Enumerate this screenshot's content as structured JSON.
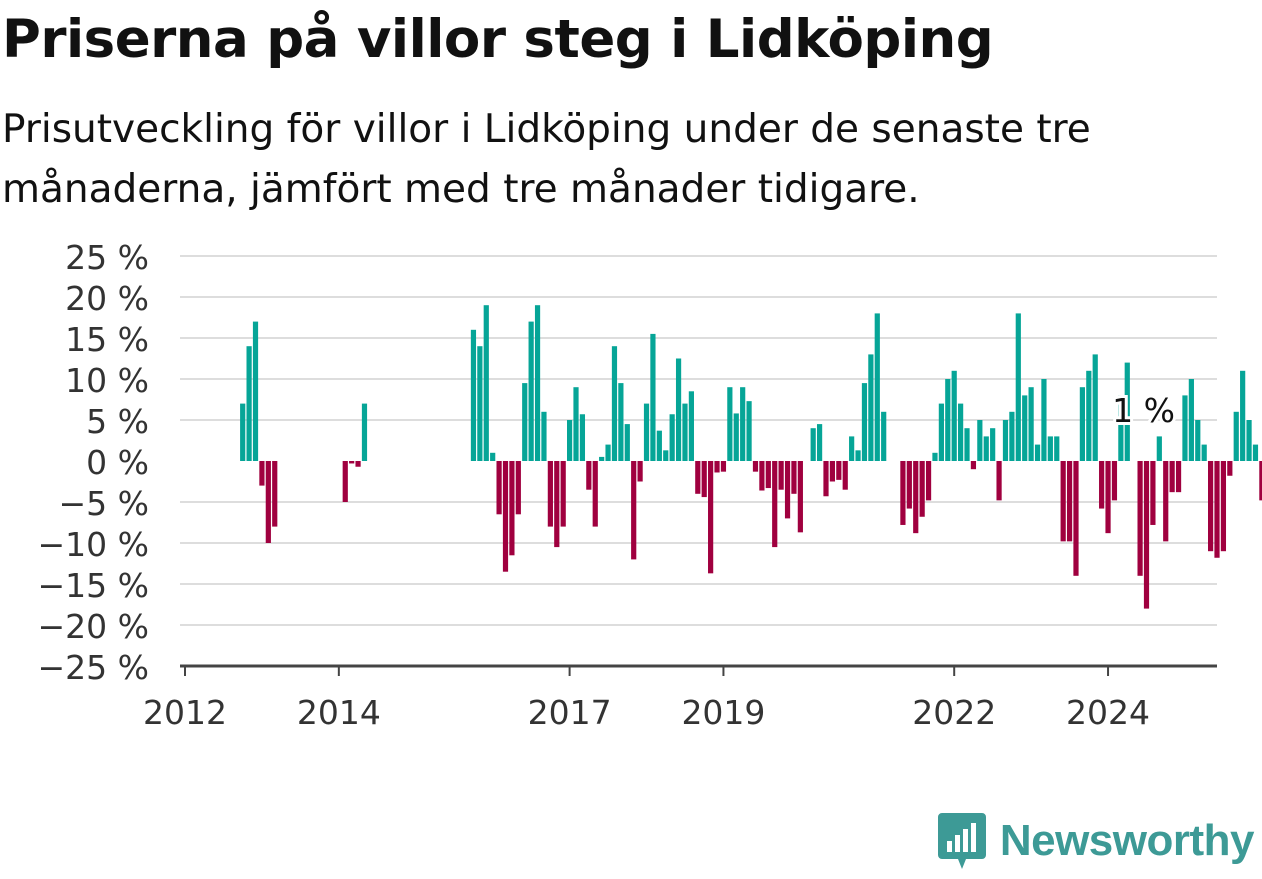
{
  "header": {
    "title": "Priserna på villor steg i Lidköping",
    "subtitle": "Prisutveckling för villor i Lidköping under de senaste tre månaderna, jämfört med tre månader tidigare."
  },
  "brand": {
    "name": "Newsworthy",
    "logo_icon": "bar-chart-badge-icon"
  },
  "colors": {
    "positive": "#06a597",
    "negative": "#a0003f",
    "grid": "#dddddd",
    "axis": "#444444",
    "brand": "#3d9a96"
  },
  "chart_data": {
    "type": "bar",
    "title": "Priserna på villor steg i Lidköping",
    "subtitle": "Prisutveckling för villor i Lidköping under de senaste tre månaderna, jämfört med tre månader tidigare.",
    "xlabel": "",
    "ylabel": "",
    "ylim": [
      -25,
      25
    ],
    "grid": true,
    "legend": "none",
    "start_month": "2012-01",
    "yticks": [
      25,
      20,
      15,
      10,
      5,
      0,
      -5,
      -10,
      -15,
      -20,
      -25
    ],
    "ytick_labels": [
      "25 %",
      "20 %",
      "15 %",
      "10 %",
      "5 %",
      "0 %",
      "−5 %",
      "−10 %",
      "−15 %",
      "−20 %",
      "−25 %"
    ],
    "xticks": [
      {
        "label": "2012",
        "month": "2012-01"
      },
      {
        "label": "2014",
        "month": "2014-01"
      },
      {
        "label": "2017",
        "month": "2017-01"
      },
      {
        "label": "2019",
        "month": "2019-01"
      },
      {
        "label": "2022",
        "month": "2022-01"
      },
      {
        "label": "2024",
        "month": "2024-01"
      }
    ],
    "annotation": {
      "text": "1 %",
      "month": "2024-07",
      "value": 1
    },
    "values": [
      null,
      null,
      null,
      null,
      null,
      null,
      null,
      null,
      null,
      7,
      14,
      17,
      -3,
      -10,
      -8,
      null,
      null,
      null,
      null,
      null,
      null,
      null,
      null,
      null,
      null,
      -5,
      -0.3,
      -0.7,
      7,
      null,
      null,
      null,
      null,
      null,
      null,
      null,
      null,
      null,
      null,
      null,
      null,
      null,
      null,
      null,
      null,
      null,
      null,
      null,
      null,
      null,
      null,
      null,
      null,
      null,
      null,
      null,
      null,
      null,
      null,
      null,
      null,
      null,
      null,
      null,
      null,
      null,
      null,
      null,
      null,
      null,
      null,
      null,
      null,
      null,
      null,
      null,
      null,
      null,
      null,
      null,
      null,
      null,
      null,
      null,
      null,
      null,
      null,
      null,
      null,
      null,
      null,
      null,
      null,
      null,
      null,
      null,
      null,
      null,
      null,
      null,
      null,
      null,
      null,
      null,
      null,
      null,
      null,
      null,
      null,
      null,
      null,
      null,
      null,
      null,
      null,
      null,
      null,
      null,
      null,
      null,
      null,
      null,
      null,
      null,
      null,
      null,
      null,
      null,
      null,
      null,
      null,
      null,
      null,
      null,
      null,
      null,
      null,
      null,
      null,
      null,
      null,
      null,
      null,
      null,
      null,
      null,
      null,
      null,
      null
    ]
  }
}
